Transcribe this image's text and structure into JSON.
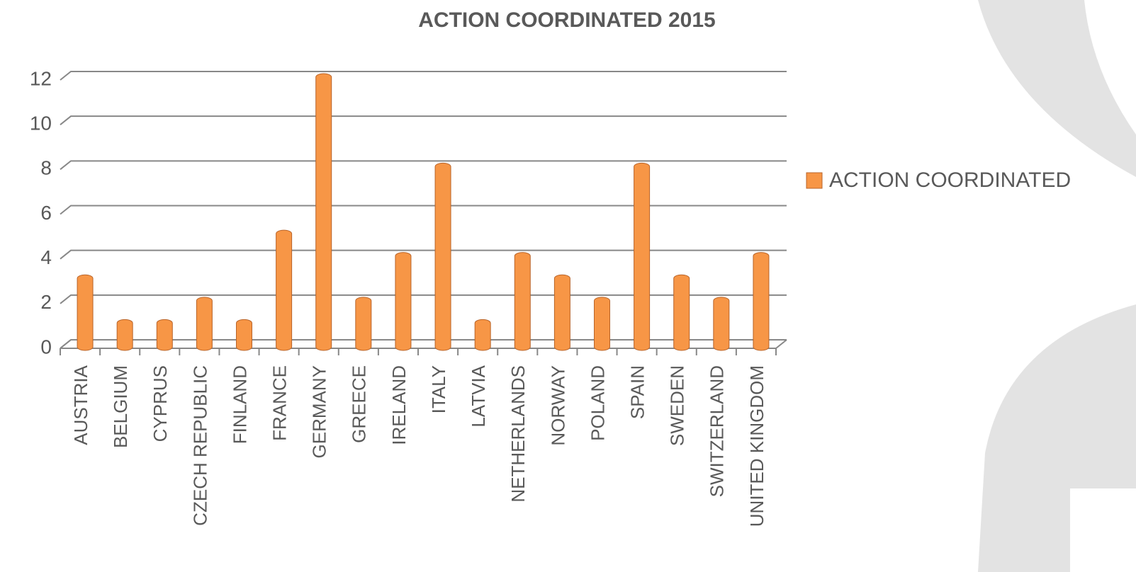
{
  "chart_data": {
    "type": "bar",
    "title": "ACTION COORDINATED 2015",
    "categories": [
      "AUSTRIA",
      "BELGIUM",
      "CYPRUS",
      "CZECH REPUBLIC",
      "FINLAND",
      "FRANCE",
      "GERMANY",
      "GREECE",
      "IRELAND",
      "ITALY",
      "LATVIA",
      "NETHERLANDS",
      "NORWAY",
      "POLAND",
      "SPAIN",
      "SWEDEN",
      "SWITZERLAND",
      "UNITED KINGDOM"
    ],
    "series": [
      {
        "name": "ACTION COORDINATED",
        "color": "#f79646",
        "values": [
          3,
          1,
          1,
          2,
          1,
          5,
          12,
          2,
          4,
          8,
          1,
          4,
          3,
          2,
          8,
          3,
          2,
          4
        ]
      }
    ],
    "ylim": [
      0,
      12
    ],
    "yticks": [
      0,
      2,
      4,
      6,
      8,
      10,
      12
    ],
    "grid": true,
    "legend": "right"
  }
}
